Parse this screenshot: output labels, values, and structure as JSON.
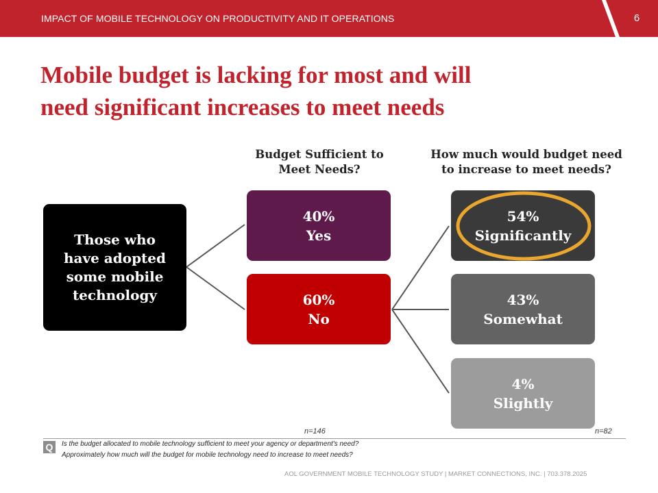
{
  "header": {
    "section_title": "IMPACT OF MOBILE TECHNOLOGY ON PRODUCTIVITY AND IT OPERATIONS",
    "page_number": "6"
  },
  "headline": {
    "line1": "Mobile budget is lacking for most and will",
    "line2": "need significant increases to meet needs"
  },
  "columns": {
    "sufficient_heading_line1": "Budget Sufficient to",
    "sufficient_heading_line2": "Meet Needs?",
    "increase_heading_line1": "How much would budget need",
    "increase_heading_line2": "to increase to meet needs?"
  },
  "diagram": {
    "root_line1": "Those who",
    "root_line2": "have adopted",
    "root_line3": "some mobile",
    "root_line4": "technology",
    "yes": {
      "pct": "40%",
      "label": "Yes"
    },
    "no": {
      "pct": "60%",
      "label": "No"
    },
    "significantly": {
      "pct": "54%",
      "label": "Significantly"
    },
    "somewhat": {
      "pct": "43%",
      "label": "Somewhat"
    },
    "slightly": {
      "pct": "4%",
      "label": "Slightly"
    },
    "n_left": "n=146",
    "n_right": "n=82"
  },
  "colors": {
    "brand_red": "#c0232c",
    "root_fill": "#000000",
    "yes_fill": "#5e1a4b",
    "no_fill": "#c00000",
    "significantly_fill": "#3a3a3a",
    "somewhat_fill": "#636363",
    "slightly_fill": "#9c9c9c",
    "highlight_ring": "#e9a72f"
  },
  "question": {
    "icon": "Q",
    "line1": "Is the budget allocated to mobile technology sufficient to meet your agency or department's need?",
    "line2": "Approximately how much will the budget for mobile technology need to increase to meet needs?"
  },
  "footer": {
    "text": "AOL GOVERNMENT MOBILE TECHNOLOGY STUDY  |  MARKET CONNECTIONS, INC.  |  703.378.2025"
  }
}
